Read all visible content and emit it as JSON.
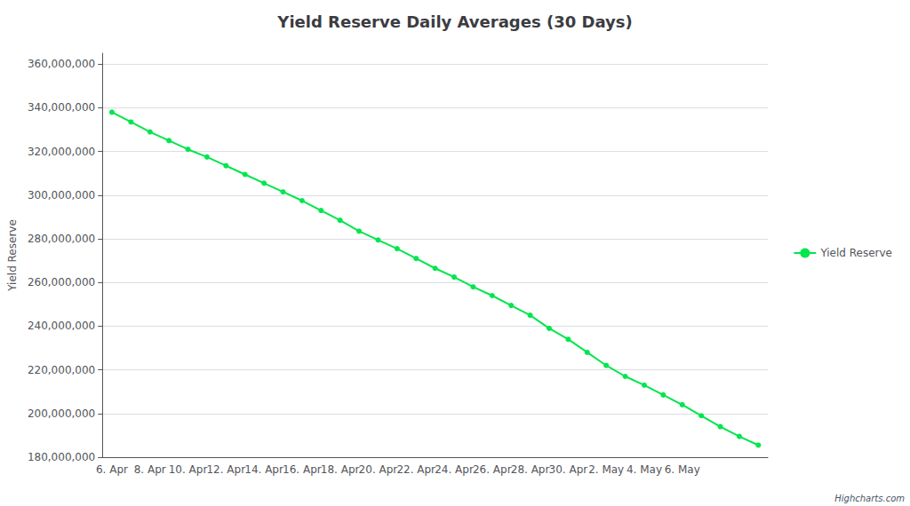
{
  "chart_data": {
    "type": "line",
    "title": "Yield Reserve Daily Averages (30 Days)",
    "ylabel": "Yield Reserve",
    "categories": [
      "6. Apr",
      null,
      "8. Apr",
      null,
      "10. Apr",
      null,
      "12. Apr",
      null,
      "14. Apr",
      null,
      "16. Apr",
      null,
      "18. Apr",
      null,
      "20. Apr",
      null,
      "22. Apr",
      null,
      "24. Apr",
      null,
      "26. Apr",
      null,
      "28. Apr",
      null,
      "30. Apr",
      null,
      "2. May",
      null,
      "4. May",
      null,
      "6. May",
      null,
      null,
      null,
      null
    ],
    "series": [
      {
        "name": "Yield Reserve",
        "color": "#00e64d",
        "marker": "circle",
        "values": [
          338000000,
          333500000,
          329000000,
          325000000,
          321000000,
          317500000,
          313500000,
          309500000,
          305500000,
          301500000,
          297500000,
          293000000,
          288500000,
          283500000,
          279500000,
          275500000,
          271000000,
          266500000,
          262500000,
          258000000,
          254000000,
          249500000,
          245000000,
          239000000,
          234000000,
          228000000,
          222000000,
          217000000,
          213000000,
          208500000,
          204000000,
          199000000,
          194000000,
          189500000,
          185500000
        ]
      }
    ],
    "ylim": [
      180000000,
      365000000
    ],
    "yticks": [
      {
        "value": 180000000,
        "label": "180,000,000"
      },
      {
        "value": 200000000,
        "label": "200,000,000"
      },
      {
        "value": 220000000,
        "label": "220,000,000"
      },
      {
        "value": 240000000,
        "label": "240,000,000"
      },
      {
        "value": 260000000,
        "label": "260,000,000"
      },
      {
        "value": 280000000,
        "label": "280,000,000"
      },
      {
        "value": 300000000,
        "label": "300,000,000"
      },
      {
        "value": 320000000,
        "label": "320,000,000"
      },
      {
        "value": 340000000,
        "label": "340,000,000"
      },
      {
        "value": 360000000,
        "label": "360,000,000"
      }
    ],
    "grid": true,
    "legend": "right",
    "annotations": [
      "Highcharts.com"
    ]
  }
}
